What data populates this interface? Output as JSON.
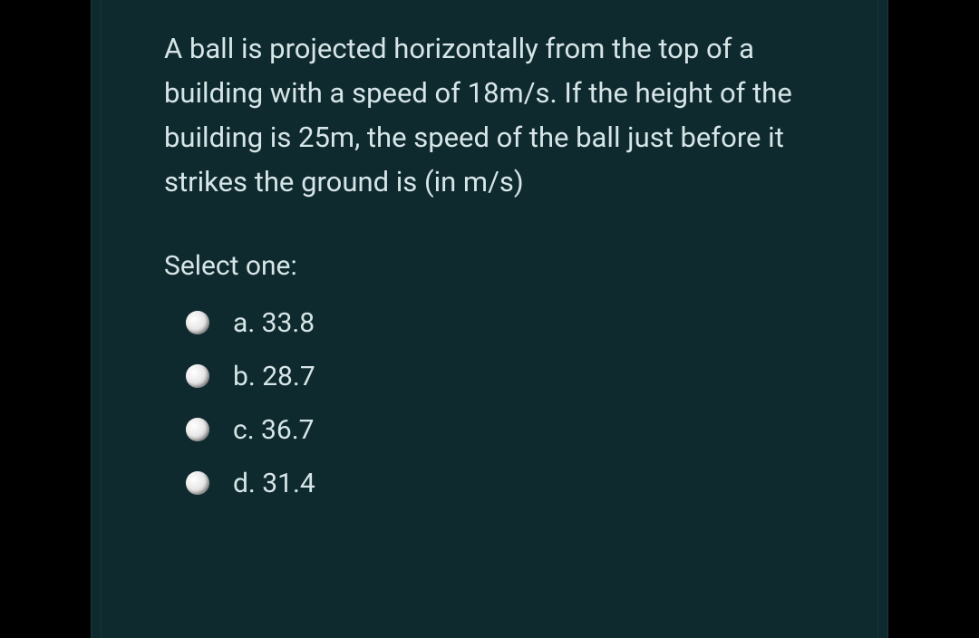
{
  "question": {
    "text": "A ball is projected horizontally from the top of a building with a speed of 18m/s. If the height of the building is 25m, the speed of the ball just before it strikes the ground is (in m/s)",
    "select_label": "Select one:",
    "options": [
      {
        "letter": "a",
        "value": "33.8"
      },
      {
        "letter": "b",
        "value": "28.7"
      },
      {
        "letter": "c",
        "value": "36.7"
      },
      {
        "letter": "d",
        "value": "31.4"
      }
    ]
  },
  "colors": {
    "background": "#000000",
    "panel_background": "#0f2a2e",
    "text": "#d6e5e7",
    "radio_light": "#ffffff",
    "radio_shadow": "#a0a0a0"
  },
  "typography": {
    "question_fontsize": 31,
    "option_fontsize": 30,
    "line_height": 1.58
  }
}
